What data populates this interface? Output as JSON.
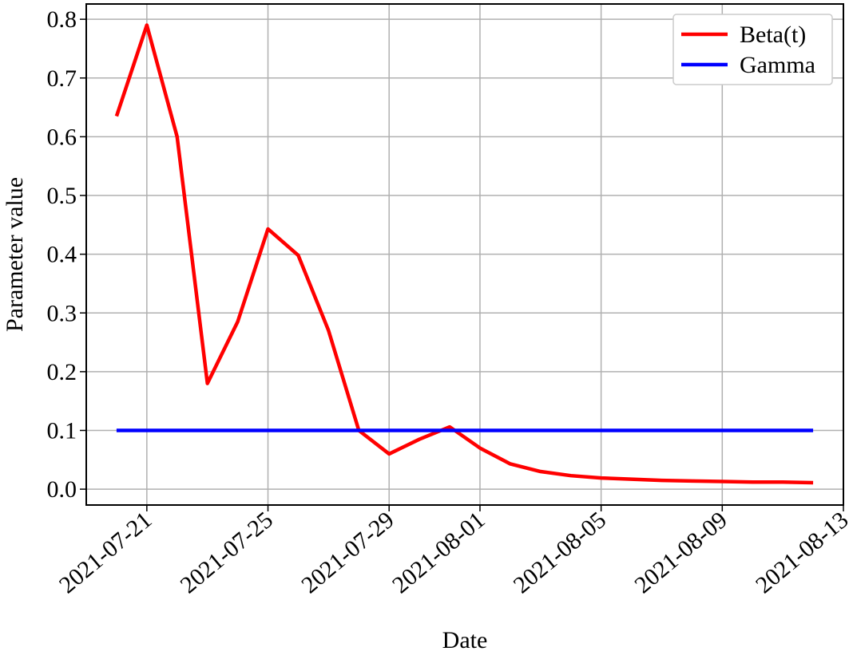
{
  "chart_data": {
    "type": "line",
    "x_label": "Date",
    "y_label": "Parameter value",
    "x": [
      "2021-07-20",
      "2021-07-21",
      "2021-07-22",
      "2021-07-23",
      "2021-07-24",
      "2021-07-25",
      "2021-07-26",
      "2021-07-27",
      "2021-07-28",
      "2021-07-29",
      "2021-07-30",
      "2021-07-31",
      "2021-08-01",
      "2021-08-02",
      "2021-08-03",
      "2021-08-04",
      "2021-08-05",
      "2021-08-06",
      "2021-08-07",
      "2021-08-08",
      "2021-08-09",
      "2021-08-10",
      "2021-08-11",
      "2021-08-12"
    ],
    "series": [
      {
        "name": "Beta(t)",
        "color": "#ff0000",
        "values": [
          0.635,
          0.79,
          0.6,
          0.18,
          0.285,
          0.443,
          0.398,
          0.27,
          0.1,
          0.06,
          0.085,
          0.106,
          0.07,
          0.043,
          0.03,
          0.023,
          0.019,
          0.017,
          0.015,
          0.014,
          0.013,
          0.012,
          0.012,
          0.011
        ]
      },
      {
        "name": "Gamma",
        "color": "#0000ff",
        "values": [
          0.1,
          0.1,
          0.1,
          0.1,
          0.1,
          0.1,
          0.1,
          0.1,
          0.1,
          0.1,
          0.1,
          0.1,
          0.1,
          0.1,
          0.1,
          0.1,
          0.1,
          0.1,
          0.1,
          0.1,
          0.1,
          0.1,
          0.1,
          0.1
        ]
      }
    ],
    "xlim": [
      "2021-07-19",
      "2021-08-13"
    ],
    "xticks": [
      "2021-07-21",
      "2021-07-25",
      "2021-07-29",
      "2021-08-01",
      "2021-08-05",
      "2021-08-09",
      "2021-08-13"
    ],
    "ylim": [
      -0.027,
      0.826
    ],
    "yticks": [
      {
        "value": 0,
        "label": "0.0"
      },
      0.1,
      0.2,
      0.3,
      0.4,
      0.5,
      0.6,
      0.7,
      0.8
    ],
    "grid": true,
    "legend": "upper right"
  }
}
